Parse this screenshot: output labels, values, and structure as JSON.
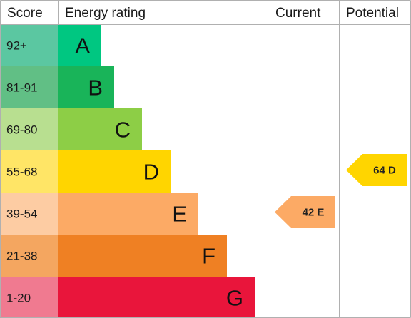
{
  "headers": {
    "score": "Score",
    "rating": "Energy rating",
    "current": "Current",
    "potential": "Potential"
  },
  "chart_data": {
    "type": "bar",
    "title": "",
    "bands": [
      {
        "letter": "A",
        "range": "92+",
        "color": "#00c781",
        "score_bg": "#5bc7a1"
      },
      {
        "letter": "B",
        "range": "81-91",
        "color": "#19b459",
        "score_bg": "#61bf85"
      },
      {
        "letter": "C",
        "range": "69-80",
        "color": "#8dce46",
        "score_bg": "#b8df90"
      },
      {
        "letter": "D",
        "range": "55-68",
        "color": "#ffd500",
        "score_bg": "#ffe566"
      },
      {
        "letter": "E",
        "range": "39-54",
        "color": "#fcaa65",
        "score_bg": "#fdcca3"
      },
      {
        "letter": "F",
        "range": "21-38",
        "color": "#ef8023",
        "score_bg": "#f4a660"
      },
      {
        "letter": "G",
        "range": "1-20",
        "color": "#e9153b",
        "score_bg": "#f07a90"
      }
    ],
    "current": {
      "value": 42,
      "band": "E",
      "label": "42 E",
      "color": "#fcaa65"
    },
    "potential": {
      "value": 64,
      "band": "D",
      "label": "64 D",
      "color": "#ffd500"
    }
  }
}
